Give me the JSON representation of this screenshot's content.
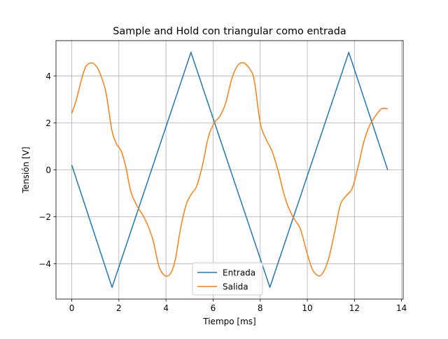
{
  "chart_data": {
    "type": "line",
    "title": "Sample and Hold con triangular como entrada",
    "xlabel": "Tiempo [ms]",
    "ylabel": "Tensión [V]",
    "xlim": [
      -0.67,
      14.07
    ],
    "ylim": [
      -5.5,
      5.5
    ],
    "xticks": [
      0,
      2,
      4,
      6,
      8,
      10,
      12,
      14
    ],
    "yticks": [
      -4,
      -2,
      0,
      2,
      4
    ],
    "xtick_labels": [
      "0",
      "2",
      "4",
      "6",
      "8",
      "10",
      "12",
      "14"
    ],
    "ytick_labels": [
      "−4",
      "−2",
      "0",
      "2",
      "4"
    ],
    "grid": true,
    "legend_position": "bottom-center",
    "series": [
      {
        "name": "Entrada",
        "color": "#1f77b4",
        "x": [
          0,
          1.71,
          5.06,
          8.41,
          11.76,
          13.41
        ],
        "y": [
          0.2,
          -5.0,
          5.0,
          -5.0,
          5.0,
          0.0
        ]
      },
      {
        "name": "Salida",
        "color": "#ff7f0e",
        "x": [
          0.0,
          0.2,
          0.4,
          0.6,
          0.85,
          1.05,
          1.2,
          1.45,
          1.7,
          1.9,
          2.1,
          2.3,
          2.5,
          2.75,
          3.0,
          3.2,
          3.45,
          3.7,
          3.95,
          4.2,
          4.4,
          4.6,
          4.85,
          5.1,
          5.3,
          5.55,
          5.8,
          6.05,
          6.3,
          6.55,
          6.8,
          7.05,
          7.3,
          7.55,
          7.75,
          8.0,
          8.25,
          8.5,
          8.75,
          9.0,
          9.2,
          9.45,
          9.7,
          9.95,
          10.2,
          10.45,
          10.65,
          10.9,
          11.15,
          11.4,
          11.65,
          11.9,
          12.15,
          12.4,
          12.65,
          12.9,
          13.15,
          13.41
        ],
        "y": [
          2.4,
          3.0,
          3.8,
          4.4,
          4.55,
          4.4,
          4.1,
          3.3,
          1.7,
          1.1,
          0.8,
          0.1,
          -0.9,
          -1.5,
          -1.9,
          -2.3,
          -3.0,
          -4.1,
          -4.5,
          -4.4,
          -3.8,
          -2.6,
          -1.5,
          -1.0,
          -0.7,
          0.2,
          1.4,
          2.0,
          2.3,
          2.9,
          3.9,
          4.45,
          4.55,
          4.3,
          3.8,
          2.0,
          1.3,
          0.8,
          0.0,
          -1.0,
          -1.6,
          -2.1,
          -2.5,
          -3.4,
          -4.2,
          -4.5,
          -4.4,
          -3.8,
          -2.7,
          -1.5,
          -1.1,
          -0.8,
          0.1,
          1.2,
          1.9,
          2.3,
          2.6,
          2.6
        ]
      }
    ]
  }
}
